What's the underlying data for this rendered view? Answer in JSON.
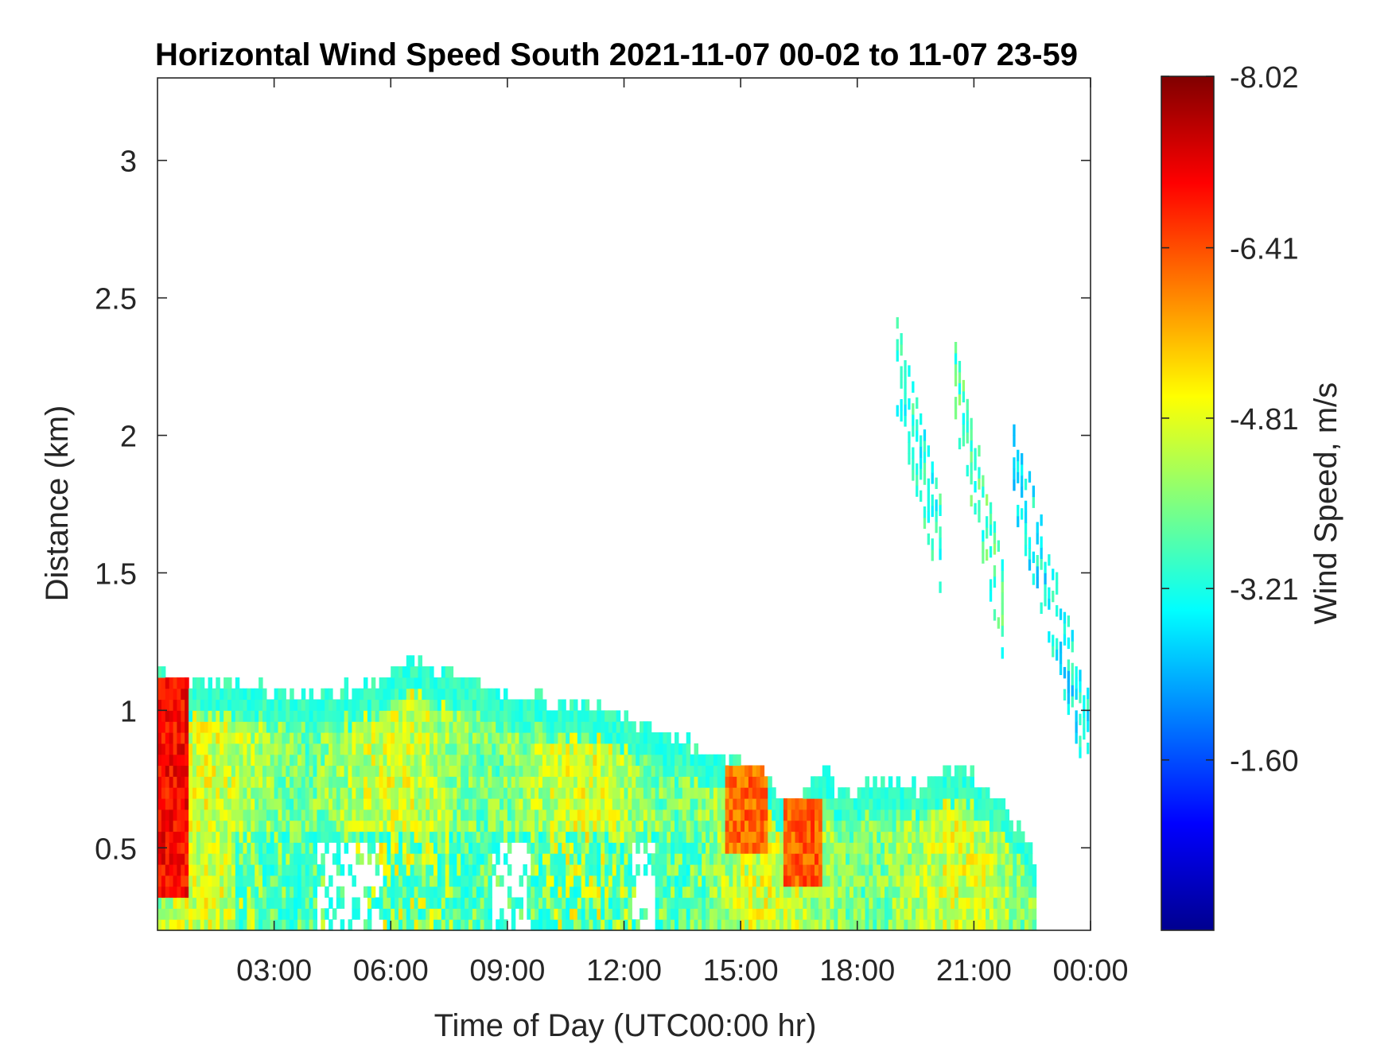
{
  "chart_data": {
    "type": "heatmap",
    "title": "Horizontal Wind Speed South 2021-11-07 00-02 to 11-07 23-59",
    "xlabel": "Time of Day (UTC00:00 hr)",
    "ylabel": "Distance (km)",
    "x_unit": "hours",
    "xlim": [
      0.0,
      24.0
    ],
    "ylim": [
      0.2,
      3.3
    ],
    "x_ticks": [
      3,
      6,
      9,
      12,
      15,
      18,
      21,
      24
    ],
    "x_tick_labels": [
      "03:00",
      "06:00",
      "09:00",
      "12:00",
      "15:00",
      "18:00",
      "21:00",
      "00:00"
    ],
    "y_ticks": [
      0.5,
      1,
      1.5,
      2,
      2.5,
      3
    ],
    "y_tick_labels": [
      "0.5",
      "1",
      "1.5",
      "2",
      "2.5",
      "3"
    ],
    "colorbar": {
      "label": "Wind Speed, m/s",
      "colormap": "jet",
      "range": [
        -8.02,
        0
      ],
      "ticks": [
        -8.02,
        -6.41,
        -4.81,
        -3.21,
        -1.6
      ],
      "tick_labels": [
        "-8.02",
        "-6.41",
        "-4.81",
        "-3.21",
        "-1.60"
      ]
    },
    "grid": false,
    "missing_value_color": "#ffffff",
    "regions": [
      {
        "name": "boundary-layer",
        "x_range": [
          0.0,
          22.6
        ],
        "top_km": [
          [
            0.0,
            1.12
          ],
          [
            0.5,
            1.1
          ],
          [
            1.5,
            1.08
          ],
          [
            2.5,
            1.07
          ],
          [
            3.5,
            1.04
          ],
          [
            4.5,
            1.05
          ],
          [
            5.5,
            1.08
          ],
          [
            6.5,
            1.17
          ],
          [
            7.5,
            1.1
          ],
          [
            8.5,
            1.05
          ],
          [
            9.5,
            1.03
          ],
          [
            10.5,
            1.01
          ],
          [
            11.5,
            1.0
          ],
          [
            12.5,
            0.93
          ],
          [
            13.5,
            0.87
          ],
          [
            14.5,
            0.78
          ],
          [
            15.0,
            0.81
          ],
          [
            15.5,
            0.75
          ],
          [
            16.0,
            0.66
          ],
          [
            16.5,
            0.68
          ],
          [
            17.0,
            0.77
          ],
          [
            17.5,
            0.68
          ],
          [
            18.0,
            0.7
          ],
          [
            18.5,
            0.72
          ],
          [
            19.5,
            0.7
          ],
          [
            20.5,
            0.78
          ],
          [
            21.5,
            0.68
          ],
          [
            22.0,
            0.56
          ],
          [
            22.6,
            0.42
          ]
        ]
      },
      {
        "name": "surface-jet-strong",
        "x_range": [
          0.0,
          0.75
        ],
        "z_range": [
          0.3,
          1.1
        ],
        "value": -7.0
      },
      {
        "name": "afternoon-core",
        "x_range": [
          14.5,
          15.6
        ],
        "z_range": [
          0.45,
          0.78
        ],
        "value": -6.2
      },
      {
        "name": "afternoon-core-2",
        "x_range": [
          16.0,
          17.0
        ],
        "z_range": [
          0.35,
          0.65
        ],
        "value": -6.3
      },
      {
        "name": "elevated-plume-1",
        "x_range": [
          19.0,
          20.2
        ],
        "z_range": [
          1.55,
          2.25
        ],
        "value": -3.3
      },
      {
        "name": "elevated-plume-2",
        "x_range": [
          20.5,
          21.8
        ],
        "z_range": [
          1.3,
          2.2
        ],
        "value": -3.6
      },
      {
        "name": "elevated-plume-3",
        "x_range": [
          22.0,
          24.0
        ],
        "z_range": [
          0.85,
          1.9
        ],
        "value": -3.0
      }
    ]
  }
}
